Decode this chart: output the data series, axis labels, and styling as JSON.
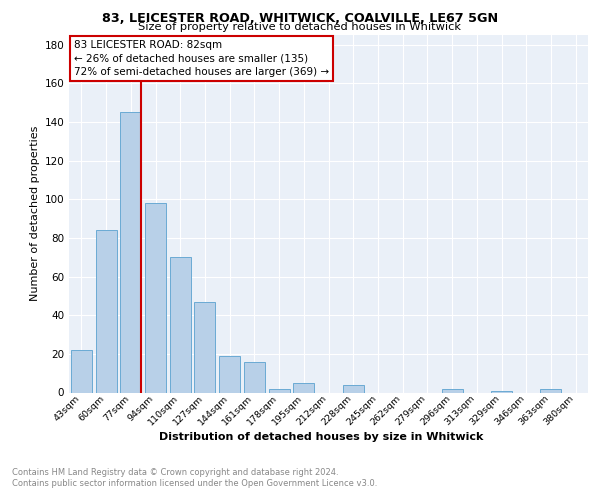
{
  "title1": "83, LEICESTER ROAD, WHITWICK, COALVILLE, LE67 5GN",
  "title2": "Size of property relative to detached houses in Whitwick",
  "xlabel": "Distribution of detached houses by size in Whitwick",
  "ylabel": "Number of detached properties",
  "categories": [
    "43sqm",
    "60sqm",
    "77sqm",
    "94sqm",
    "110sqm",
    "127sqm",
    "144sqm",
    "161sqm",
    "178sqm",
    "195sqm",
    "212sqm",
    "228sqm",
    "245sqm",
    "262sqm",
    "279sqm",
    "296sqm",
    "313sqm",
    "329sqm",
    "346sqm",
    "363sqm",
    "380sqm"
  ],
  "values": [
    22,
    84,
    145,
    98,
    70,
    47,
    19,
    16,
    2,
    5,
    0,
    4,
    0,
    0,
    0,
    2,
    0,
    1,
    0,
    2,
    0
  ],
  "bar_color": "#b8d0e8",
  "bar_edge_color": "#6aaad4",
  "vline_x_index": 2,
  "vline_color": "#cc0000",
  "annotation_text": "83 LEICESTER ROAD: 82sqm\n← 26% of detached houses are smaller (135)\n72% of semi-detached houses are larger (369) →",
  "annotation_box_color": "#ffffff",
  "annotation_box_edge_color": "#cc0000",
  "ylim": [
    0,
    185
  ],
  "yticks": [
    0,
    20,
    40,
    60,
    80,
    100,
    120,
    140,
    160,
    180
  ],
  "footer": "Contains HM Land Registry data © Crown copyright and database right 2024.\nContains public sector information licensed under the Open Government Licence v3.0.",
  "bg_color": "#ffffff",
  "plot_bg_color": "#eaf0f8"
}
